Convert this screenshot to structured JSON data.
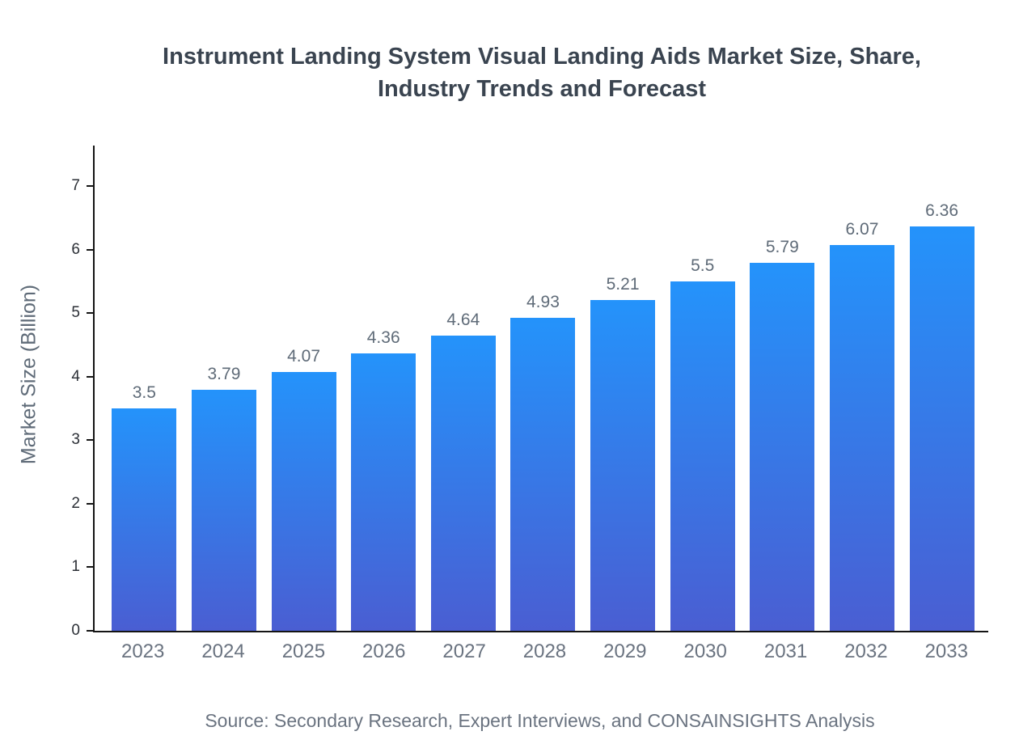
{
  "chart_data": {
    "type": "bar",
    "title": "Instrument Landing System Visual Landing Aids Market Size, Share, Industry Trends and Forecast",
    "categories": [
      "2023",
      "2024",
      "2025",
      "2026",
      "2027",
      "2028",
      "2029",
      "2030",
      "2031",
      "2032",
      "2033"
    ],
    "values": [
      3.5,
      3.79,
      4.07,
      4.36,
      4.64,
      4.93,
      5.21,
      5.5,
      5.79,
      6.07,
      6.36
    ],
    "value_labels": [
      "3.5",
      "3.79",
      "4.07",
      "4.36",
      "4.64",
      "4.93",
      "5.21",
      "5.5",
      "5.79",
      "6.07",
      "6.36"
    ],
    "xlabel": "",
    "ylabel": "Market Size (Billion)",
    "ylim": [
      0,
      7
    ],
    "yticks": [
      0,
      1,
      2,
      3,
      4,
      5,
      6,
      7
    ],
    "grid": false,
    "legend_position": "none",
    "bar_gradient_top": "#2493fb",
    "bar_gradient_bottom": "#4a5ed2",
    "source": "Source: Secondary Research, Expert Interviews, and CONSAINSIGHTS Analysis"
  }
}
